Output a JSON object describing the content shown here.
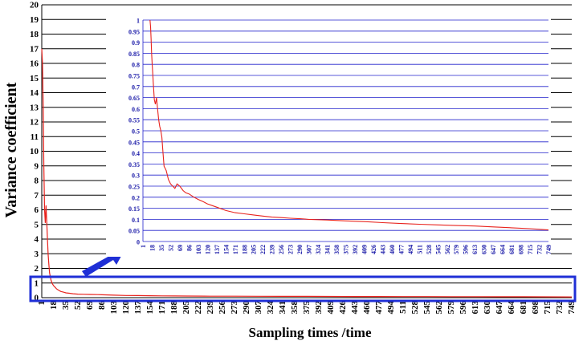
{
  "colors": {
    "series": "#e8231e",
    "grid_main": "#000000",
    "grid_inset": "#2222cc",
    "inset_ticks": "#1a1aa8",
    "highlight_box": "#1f2fd6",
    "arrow": "#1f2fd6"
  },
  "chart_data": [
    {
      "type": "line",
      "ylabel": "Variance coefficient",
      "xlabel": "Sampling times /time",
      "ylim": [
        0,
        20
      ],
      "yticks": [
        0,
        1,
        2,
        3,
        4,
        5,
        6,
        7,
        8,
        9,
        10,
        11,
        12,
        13,
        14,
        15,
        16,
        17,
        18,
        19,
        20
      ],
      "xticks": [
        1,
        18,
        35,
        52,
        69,
        86,
        103,
        120,
        137,
        154,
        171,
        188,
        205,
        222,
        239,
        256,
        273,
        290,
        307,
        324,
        341,
        358,
        375,
        392,
        409,
        426,
        443,
        460,
        477,
        494,
        511,
        528,
        545,
        562,
        579,
        596,
        613,
        630,
        647,
        664,
        681,
        698,
        715,
        732,
        749
      ],
      "xlim": [
        1,
        749
      ],
      "grid": "horizontal",
      "series": [
        {
          "x": [
            1,
            2,
            3,
            4,
            5,
            6,
            7,
            8,
            9,
            10,
            11,
            12,
            14,
            16,
            18,
            20,
            22,
            25,
            28,
            32,
            35,
            40,
            45,
            52,
            60,
            69,
            80,
            86,
            103,
            120,
            137,
            154,
            171,
            188,
            205,
            239,
            273,
            307,
            341,
            375,
            409,
            443,
            477,
            511,
            545,
            579,
            613,
            647,
            681,
            715,
            749
          ],
          "values": [
            17.0,
            16.0,
            13.0,
            9.0,
            6.0,
            5.1,
            6.3,
            5.2,
            4.0,
            3.0,
            2.3,
            1.7,
            1.2,
            0.95,
            0.8,
            0.7,
            0.6,
            0.5,
            0.42,
            0.37,
            0.33,
            0.3,
            0.27,
            0.24,
            0.23,
            0.22,
            0.21,
            0.2,
            0.17,
            0.15,
            0.14,
            0.13,
            0.12,
            0.115,
            0.11,
            0.1,
            0.1,
            0.095,
            0.09,
            0.085,
            0.08,
            0.078,
            0.075,
            0.072,
            0.07,
            0.068,
            0.065,
            0.062,
            0.06,
            0.055,
            0.05
          ]
        }
      ]
    },
    {
      "type": "line",
      "ylim": [
        0,
        1
      ],
      "yticks": [
        0,
        0.05,
        0.1,
        0.15,
        0.2,
        0.25,
        0.3,
        0.35,
        0.4,
        0.45,
        0.5,
        0.55,
        0.6,
        0.65,
        0.7,
        0.75,
        0.8,
        0.85,
        0.9,
        0.95,
        1
      ],
      "ytick_labels": [
        "0",
        "0.05",
        "0.1",
        "0.15",
        "0.2",
        "0.25",
        "0.3",
        "0.35",
        "0.4",
        "0.45",
        "0.5",
        "0.55",
        "0.6",
        "0.65",
        "0.7",
        "0.75",
        "0.8",
        "0.85",
        "0.9",
        "0.95",
        "1"
      ],
      "xticks": [
        1,
        18,
        35,
        52,
        69,
        86,
        103,
        120,
        137,
        154,
        171,
        188,
        205,
        222,
        239,
        256,
        273,
        290,
        307,
        324,
        341,
        358,
        375,
        392,
        409,
        426,
        443,
        460,
        477,
        494,
        511,
        528,
        545,
        562,
        579,
        596,
        613,
        630,
        647,
        664,
        681,
        698,
        715,
        732,
        749
      ],
      "xlim": [
        1,
        749
      ],
      "grid": "horizontal",
      "series": [
        {
          "x": [
            14,
            15,
            16,
            17,
            18,
            19,
            20,
            21,
            22,
            24,
            26,
            28,
            30,
            32,
            34,
            36,
            38,
            40,
            42,
            44,
            46,
            48,
            50,
            52,
            56,
            60,
            64,
            69,
            75,
            80,
            86,
            95,
            103,
            112,
            120,
            137,
            154,
            171,
            188,
            205,
            222,
            239,
            256,
            273,
            290,
            307,
            341,
            375,
            409,
            443,
            477,
            511,
            545,
            579,
            613,
            647,
            681,
            715,
            749
          ],
          "values": [
            1.0,
            0.97,
            0.92,
            0.85,
            0.8,
            0.76,
            0.72,
            0.68,
            0.64,
            0.62,
            0.65,
            0.6,
            0.55,
            0.52,
            0.5,
            0.47,
            0.4,
            0.34,
            0.33,
            0.32,
            0.3,
            0.28,
            0.27,
            0.26,
            0.25,
            0.24,
            0.26,
            0.25,
            0.23,
            0.22,
            0.215,
            0.2,
            0.19,
            0.18,
            0.17,
            0.155,
            0.14,
            0.13,
            0.125,
            0.12,
            0.115,
            0.11,
            0.108,
            0.105,
            0.103,
            0.1,
            0.097,
            0.093,
            0.09,
            0.085,
            0.081,
            0.078,
            0.075,
            0.072,
            0.07,
            0.066,
            0.062,
            0.058,
            0.052
          ]
        }
      ]
    }
  ]
}
